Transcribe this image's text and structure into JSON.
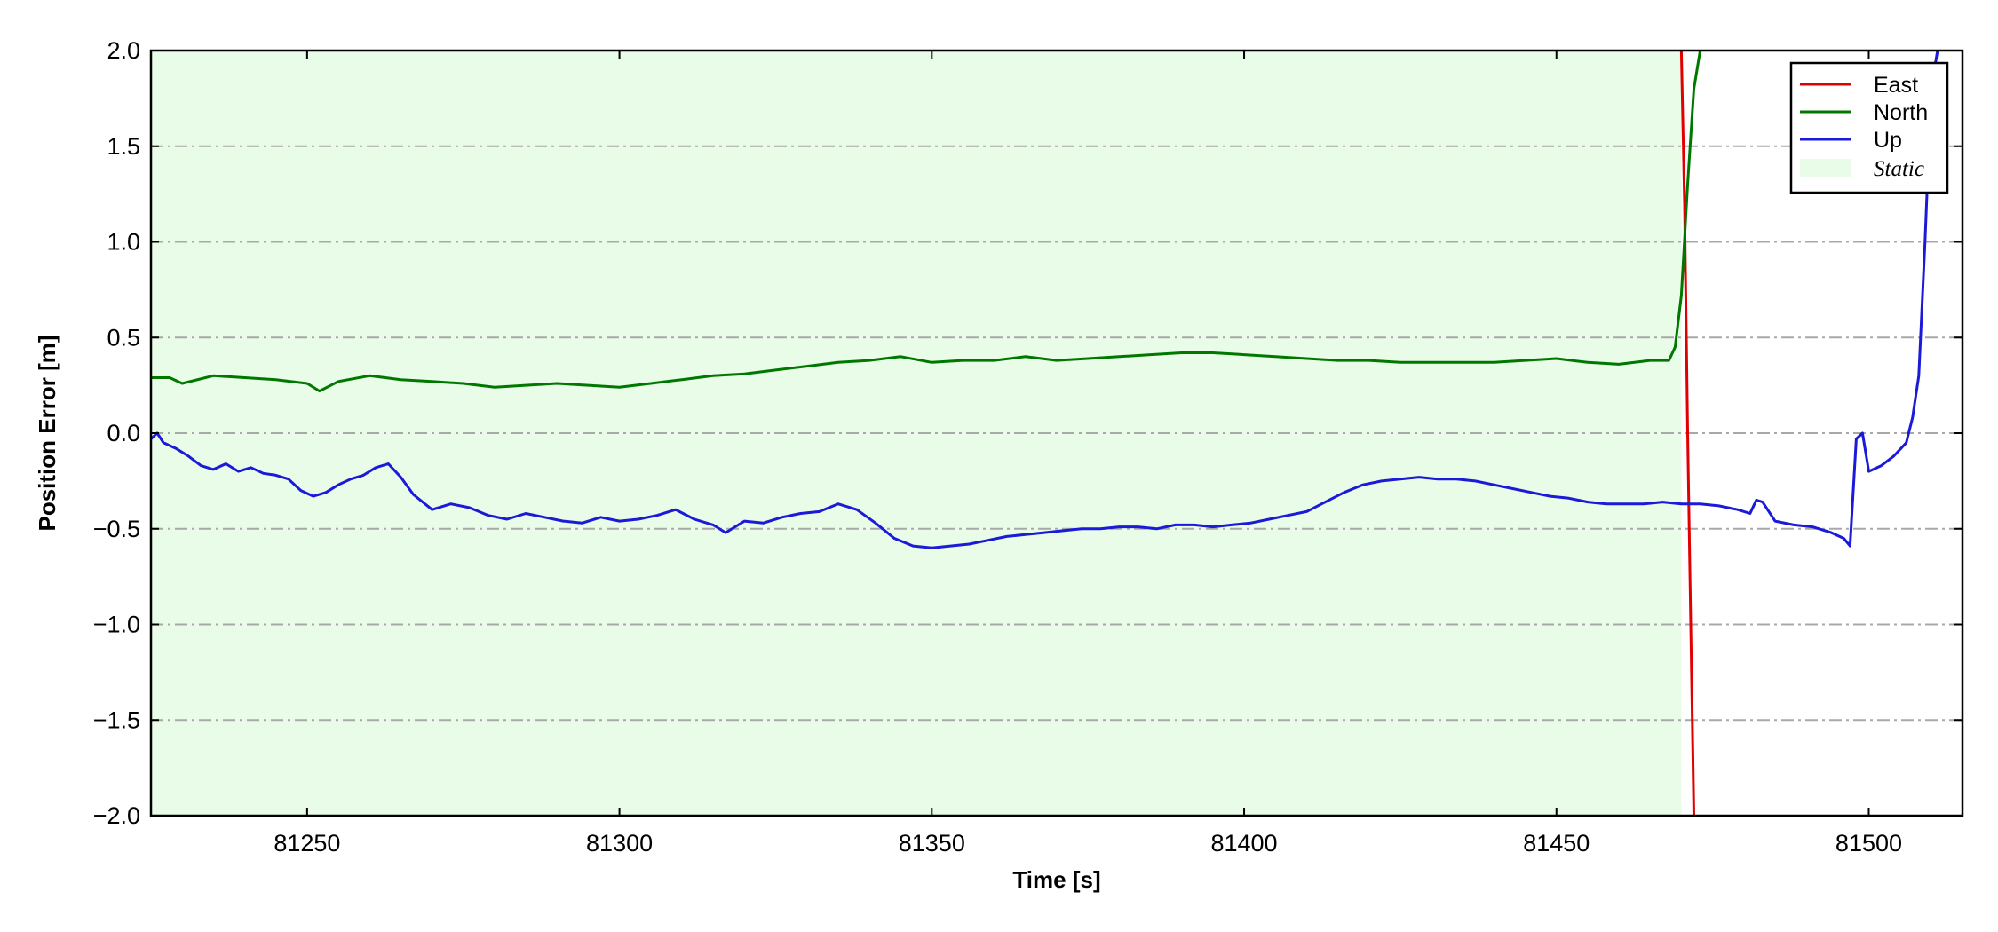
{
  "chart_data": {
    "type": "line",
    "xlabel": "Time [s]",
    "ylabel": "Position Error [m]",
    "xlim": [
      81225,
      81515
    ],
    "ylim": [
      -2.0,
      2.0
    ],
    "xticks": [
      81250,
      81300,
      81350,
      81400,
      81450,
      81500
    ],
    "yticks": [
      -2.0,
      -1.5,
      -1.0,
      -0.5,
      0.0,
      0.5,
      1.0,
      1.5,
      2.0
    ],
    "ytick_labels": [
      "−2.0",
      "−1.5",
      "−1.0",
      "−0.5",
      "0.0",
      "0.5",
      "1.0",
      "1.5",
      "2.0"
    ],
    "grid": "horizontal dash-dot",
    "legend_position": "top-right",
    "static_region": {
      "name": "Static",
      "x_start": 81225,
      "x_end": 81470,
      "color": "#e8fce8"
    },
    "series": [
      {
        "name": "East",
        "color": "#e00000",
        "x": [
          81470,
          81470.5,
          81471,
          81471.5,
          81472
        ],
        "y": [
          2.0,
          1.2,
          0.0,
          -1.0,
          -2.0
        ]
      },
      {
        "name": "North",
        "color": "#007800",
        "x": [
          81225,
          81228,
          81230,
          81235,
          81240,
          81245,
          81250,
          81252,
          81255,
          81260,
          81265,
          81270,
          81275,
          81280,
          81285,
          81290,
          81295,
          81300,
          81305,
          81310,
          81315,
          81320,
          81325,
          81330,
          81335,
          81340,
          81345,
          81350,
          81355,
          81360,
          81365,
          81370,
          81375,
          81380,
          81385,
          81390,
          81395,
          81400,
          81405,
          81410,
          81415,
          81420,
          81425,
          81430,
          81435,
          81440,
          81445,
          81450,
          81455,
          81460,
          81465,
          81468,
          81469,
          81470,
          81471,
          81472,
          81473
        ],
        "y": [
          0.29,
          0.29,
          0.26,
          0.3,
          0.29,
          0.28,
          0.26,
          0.22,
          0.27,
          0.3,
          0.28,
          0.27,
          0.26,
          0.24,
          0.25,
          0.26,
          0.25,
          0.24,
          0.26,
          0.28,
          0.3,
          0.31,
          0.33,
          0.35,
          0.37,
          0.38,
          0.4,
          0.37,
          0.38,
          0.38,
          0.4,
          0.38,
          0.39,
          0.4,
          0.41,
          0.42,
          0.42,
          0.41,
          0.4,
          0.39,
          0.38,
          0.38,
          0.37,
          0.37,
          0.37,
          0.37,
          0.38,
          0.39,
          0.37,
          0.36,
          0.38,
          0.38,
          0.45,
          0.72,
          1.3,
          1.8,
          2.0
        ]
      },
      {
        "name": "Up",
        "color": "#1a1ad8",
        "x": [
          81225,
          81226,
          81227,
          81229,
          81231,
          81233,
          81235,
          81237,
          81239,
          81241,
          81243,
          81245,
          81247,
          81249,
          81251,
          81253,
          81255,
          81257,
          81259,
          81261,
          81263,
          81265,
          81267,
          81270,
          81273,
          81276,
          81279,
          81282,
          81285,
          81288,
          81291,
          81294,
          81297,
          81300,
          81303,
          81306,
          81309,
          81312,
          81315,
          81317,
          81320,
          81323,
          81326,
          81329,
          81332,
          81335,
          81338,
          81341,
          81344,
          81347,
          81350,
          81353,
          81356,
          81359,
          81362,
          81365,
          81368,
          81371,
          81374,
          81377,
          81380,
          81383,
          81386,
          81389,
          81392,
          81395,
          81398,
          81401,
          81404,
          81407,
          81410,
          81413,
          81416,
          81419,
          81422,
          81425,
          81428,
          81431,
          81434,
          81437,
          81440,
          81443,
          81446,
          81449,
          81452,
          81455,
          81458,
          81461,
          81464,
          81467,
          81470,
          81473,
          81476,
          81479,
          81481,
          81482,
          81483,
          81485,
          81488,
          81491,
          81494,
          81496,
          81497,
          81498,
          81499,
          81500,
          81502,
          81504,
          81506,
          81507,
          81508,
          81509,
          81510,
          81511
        ],
        "y": [
          -0.03,
          0.0,
          -0.05,
          -0.08,
          -0.12,
          -0.17,
          -0.19,
          -0.16,
          -0.2,
          -0.18,
          -0.21,
          -0.22,
          -0.24,
          -0.3,
          -0.33,
          -0.31,
          -0.27,
          -0.24,
          -0.22,
          -0.18,
          -0.16,
          -0.23,
          -0.32,
          -0.4,
          -0.37,
          -0.39,
          -0.43,
          -0.45,
          -0.42,
          -0.44,
          -0.46,
          -0.47,
          -0.44,
          -0.46,
          -0.45,
          -0.43,
          -0.4,
          -0.45,
          -0.48,
          -0.52,
          -0.46,
          -0.47,
          -0.44,
          -0.42,
          -0.41,
          -0.37,
          -0.4,
          -0.47,
          -0.55,
          -0.59,
          -0.6,
          -0.59,
          -0.58,
          -0.56,
          -0.54,
          -0.53,
          -0.52,
          -0.51,
          -0.5,
          -0.5,
          -0.49,
          -0.49,
          -0.5,
          -0.48,
          -0.48,
          -0.49,
          -0.48,
          -0.47,
          -0.45,
          -0.43,
          -0.41,
          -0.36,
          -0.31,
          -0.27,
          -0.25,
          -0.24,
          -0.23,
          -0.24,
          -0.24,
          -0.25,
          -0.27,
          -0.29,
          -0.31,
          -0.33,
          -0.34,
          -0.36,
          -0.37,
          -0.37,
          -0.37,
          -0.36,
          -0.37,
          -0.37,
          -0.38,
          -0.4,
          -0.42,
          -0.35,
          -0.36,
          -0.46,
          -0.48,
          -0.49,
          -0.52,
          -0.55,
          -0.59,
          -0.03,
          0.0,
          -0.2,
          -0.17,
          -0.12,
          -0.05,
          0.08,
          0.3,
          1.0,
          1.8,
          2.0
        ]
      }
    ]
  }
}
